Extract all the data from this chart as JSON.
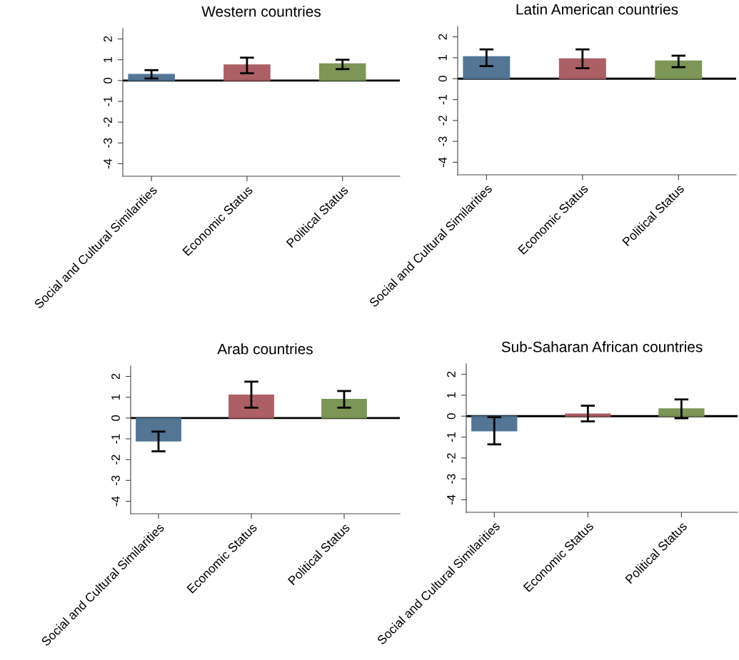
{
  "chart_data": [
    {
      "type": "bar",
      "title": "Western countries",
      "categories": [
        "Social and Cultural Similarities",
        "Economic Status",
        "Political Status"
      ],
      "values": [
        0.3,
        0.75,
        0.8
      ],
      "errors": [
        [
          0.1,
          0.5
        ],
        [
          0.35,
          1.1
        ],
        [
          0.55,
          1.0
        ]
      ],
      "colors": [
        "#4a6f90",
        "#a8585e",
        "#76914f"
      ],
      "ylim": [
        -4.6,
        2.5
      ],
      "yticks": [
        2,
        1,
        0,
        -1,
        -2,
        -3,
        -4
      ],
      "ref_lines": [
        {
          "axis": "y",
          "value": 0,
          "color": "#000000"
        }
      ],
      "grid": false,
      "legend": false
    },
    {
      "type": "bar",
      "title": "Latin American countries",
      "categories": [
        "Social and Cultural Similarities",
        "Economic Status",
        "Political Status"
      ],
      "values": [
        1.05,
        0.95,
        0.85
      ],
      "errors": [
        [
          0.6,
          1.4
        ],
        [
          0.5,
          1.4
        ],
        [
          0.55,
          1.1
        ]
      ],
      "colors": [
        "#4a6f90",
        "#a8585e",
        "#76914f"
      ],
      "ylim": [
        -4.6,
        2.5
      ],
      "yticks": [
        2,
        1,
        0,
        -1,
        -2,
        -3,
        -4
      ],
      "ref_lines": [
        {
          "axis": "y",
          "value": 0,
          "color": "#000000"
        }
      ],
      "grid": false,
      "legend": false
    },
    {
      "type": "bar",
      "title": "Arab countries",
      "categories": [
        "Social and Cultural Similarities",
        "Economic Status",
        "Political Status"
      ],
      "values": [
        -1.1,
        1.1,
        0.9
      ],
      "errors": [
        [
          -1.6,
          -0.65
        ],
        [
          0.5,
          1.75
        ],
        [
          0.5,
          1.3
        ]
      ],
      "colors": [
        "#4a6f90",
        "#a8585e",
        "#76914f"
      ],
      "ylim": [
        -4.6,
        2.5
      ],
      "yticks": [
        2,
        1,
        0,
        -1,
        -2,
        -3,
        -4
      ],
      "ref_lines": [
        {
          "axis": "y",
          "value": 0,
          "color": "#000000"
        }
      ],
      "grid": false,
      "legend": false
    },
    {
      "type": "bar",
      "title": "Sub-Saharan African countries",
      "categories": [
        "Social and Cultural Similarities",
        "Economic Status",
        "Political Status"
      ],
      "values": [
        -0.7,
        0.1,
        0.35
      ],
      "errors": [
        [
          -1.35,
          -0.05
        ],
        [
          -0.25,
          0.5
        ],
        [
          -0.1,
          0.8
        ]
      ],
      "colors": [
        "#4a6f90",
        "#a8585e",
        "#76914f"
      ],
      "ylim": [
        -4.6,
        2.5
      ],
      "yticks": [
        2,
        1,
        0,
        -1,
        -2,
        -3,
        -4
      ],
      "ref_lines": [
        {
          "axis": "y",
          "value": 0,
          "color": "#000000"
        }
      ],
      "grid": false,
      "legend": false
    }
  ]
}
